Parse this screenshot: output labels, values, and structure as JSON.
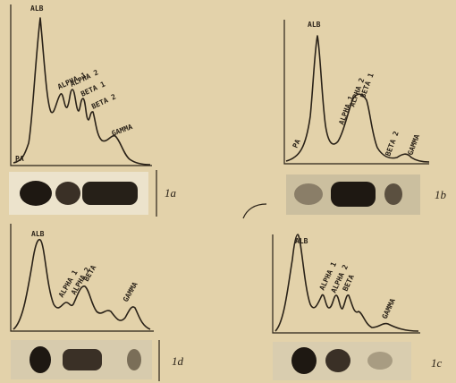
{
  "panels": [
    {
      "name": "1a",
      "labels": [
        "ALB",
        "PA",
        "ALPHA 1",
        "ALPHA 2",
        "BETA 1",
        "BETA 2",
        "GAMMA"
      ]
    },
    {
      "name": "1b",
      "labels": [
        "ALB",
        "PA",
        "ALPHA 1",
        "ALPHA 2",
        "BETA 1",
        "BETA 2",
        "GAMMA"
      ]
    },
    {
      "name": "1d",
      "labels": [
        "ALB",
        "ALPHA 1",
        "ALPHA 2",
        "BETA",
        "GAMMA"
      ]
    },
    {
      "name": "1c",
      "labels": [
        "ALB",
        "ALPHA 1",
        "ALPHA 2",
        "BETA",
        "GAMMA"
      ]
    }
  ]
}
